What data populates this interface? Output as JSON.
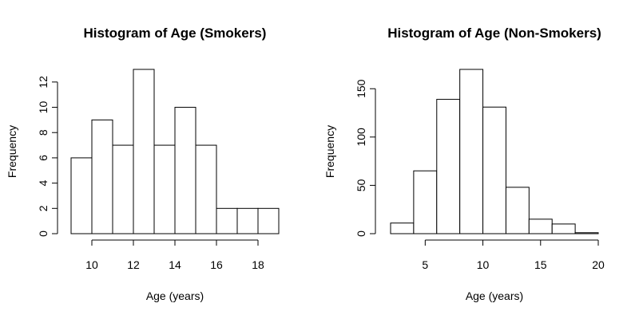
{
  "chart_data": [
    {
      "type": "bar",
      "title": "Histogram of Age (Smokers)",
      "xlabel": "Age (years)",
      "ylabel": "Frequency",
      "bin_edges": [
        9,
        10,
        11,
        12,
        13,
        14,
        15,
        16,
        17,
        18,
        19
      ],
      "values": [
        6,
        9,
        7,
        13,
        7,
        10,
        7,
        2,
        2,
        2
      ],
      "x_ticks": [
        10,
        12,
        14,
        16,
        18
      ],
      "y_ticks": [
        0,
        2,
        4,
        6,
        8,
        10,
        12
      ],
      "xlim": [
        9,
        19
      ],
      "ylim": [
        0,
        13
      ],
      "grid": false
    },
    {
      "type": "bar",
      "title": "Histogram of Age (Non-Smokers)",
      "xlabel": "Age (years)",
      "ylabel": "Frequency",
      "bin_edges": [
        2,
        4,
        6,
        8,
        10,
        12,
        14,
        16,
        18,
        20
      ],
      "values": [
        11,
        65,
        139,
        170,
        131,
        48,
        15,
        10,
        1
      ],
      "x_ticks": [
        5,
        10,
        15,
        20
      ],
      "y_ticks": [
        0,
        50,
        100,
        150
      ],
      "xlim": [
        2,
        20
      ],
      "ylim": [
        0,
        170
      ],
      "grid": false
    }
  ]
}
